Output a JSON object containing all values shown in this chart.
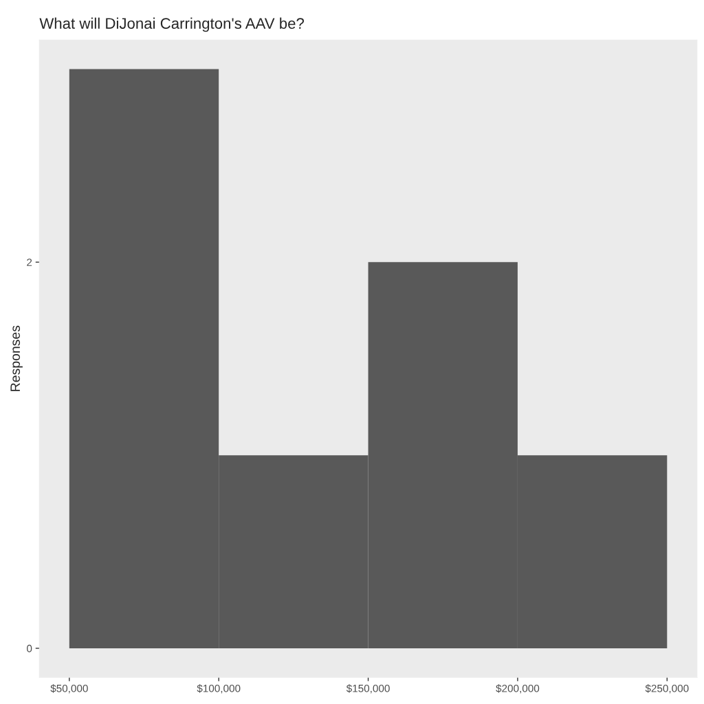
{
  "chart_data": {
    "type": "histogram",
    "title": "What will DiJonai Carrington's AAV be?",
    "ylabel": "Responses",
    "bins": [
      50000,
      100000,
      150000,
      200000,
      250000
    ],
    "values": [
      3,
      1,
      2,
      1
    ],
    "color": "#595959",
    "xlim": [
      40000,
      260000
    ],
    "xticks": [
      {
        "value": 50000,
        "label": "$50,000"
      },
      {
        "value": 100000,
        "label": "$100,000"
      },
      {
        "value": 150000,
        "label": "$150,000"
      },
      {
        "value": 200000,
        "label": "$200,000"
      },
      {
        "value": 250000,
        "label": "$250,000"
      }
    ],
    "ylim": [
      -0.15,
      3.15
    ],
    "yticks": [
      0,
      2
    ],
    "grid": false
  }
}
